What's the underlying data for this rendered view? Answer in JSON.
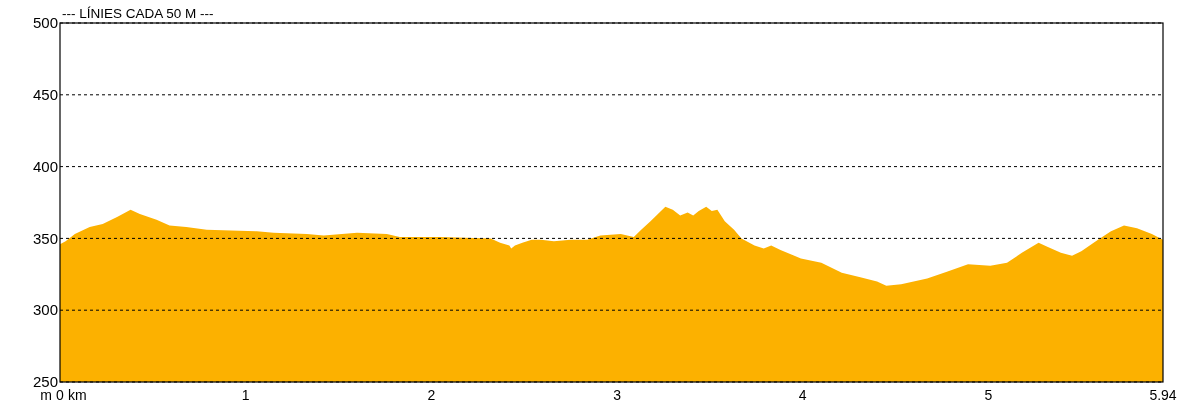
{
  "chart_data": {
    "type": "area",
    "title": "--- LÍNIES CADA 50 M ---",
    "xlabel": "km",
    "ylabel": "m",
    "x": [
      0,
      0.03,
      0.08,
      0.16,
      0.23,
      0.31,
      0.38,
      0.43,
      0.52,
      0.59,
      0.68,
      0.79,
      1.06,
      1.15,
      1.33,
      1.42,
      1.6,
      1.76,
      1.83,
      2.05,
      2.32,
      2.37,
      2.42,
      2.43,
      2.45,
      2.49,
      2.54,
      2.59,
      2.66,
      2.75,
      2.84,
      2.91,
      3.02,
      3.09,
      3.13,
      3.18,
      3.22,
      3.26,
      3.3,
      3.34,
      3.38,
      3.41,
      3.44,
      3.48,
      3.51,
      3.54,
      3.58,
      3.63,
      3.67,
      3.74,
      3.79,
      3.83,
      3.88,
      3.99,
      4.1,
      4.21,
      4.31,
      4.4,
      4.45,
      4.53,
      4.67,
      4.78,
      4.89,
      5.01,
      5.1,
      5.18,
      5.27,
      5.32,
      5.39,
      5.45,
      5.5,
      5.59,
      5.66,
      5.73,
      5.8,
      5.88,
      5.94
    ],
    "values": [
      346,
      348,
      353,
      358,
      360,
      365,
      370,
      367,
      363,
      359,
      358,
      356,
      355,
      354,
      353,
      352,
      354,
      353,
      351,
      351,
      350,
      347,
      345,
      343,
      345,
      347,
      349,
      349,
      348,
      349,
      349,
      352,
      353,
      351,
      356,
      362,
      367,
      372,
      370,
      366,
      368,
      366,
      369,
      372,
      369,
      370,
      362,
      356,
      350,
      345,
      343,
      345,
      342,
      336,
      333,
      326,
      323,
      320,
      317,
      318,
      322,
      327,
      332,
      331,
      333,
      340,
      347,
      344,
      340,
      338,
      341,
      349,
      355,
      359,
      357,
      353,
      349
    ],
    "color": "#fcb100",
    "xlim": [
      0,
      5.94
    ],
    "ylim": [
      250,
      500
    ],
    "xticks": [
      0,
      1,
      2,
      3,
      4,
      5,
      5.94
    ],
    "yticks": [
      250,
      300,
      350,
      400,
      450,
      500
    ],
    "grid": "y"
  }
}
